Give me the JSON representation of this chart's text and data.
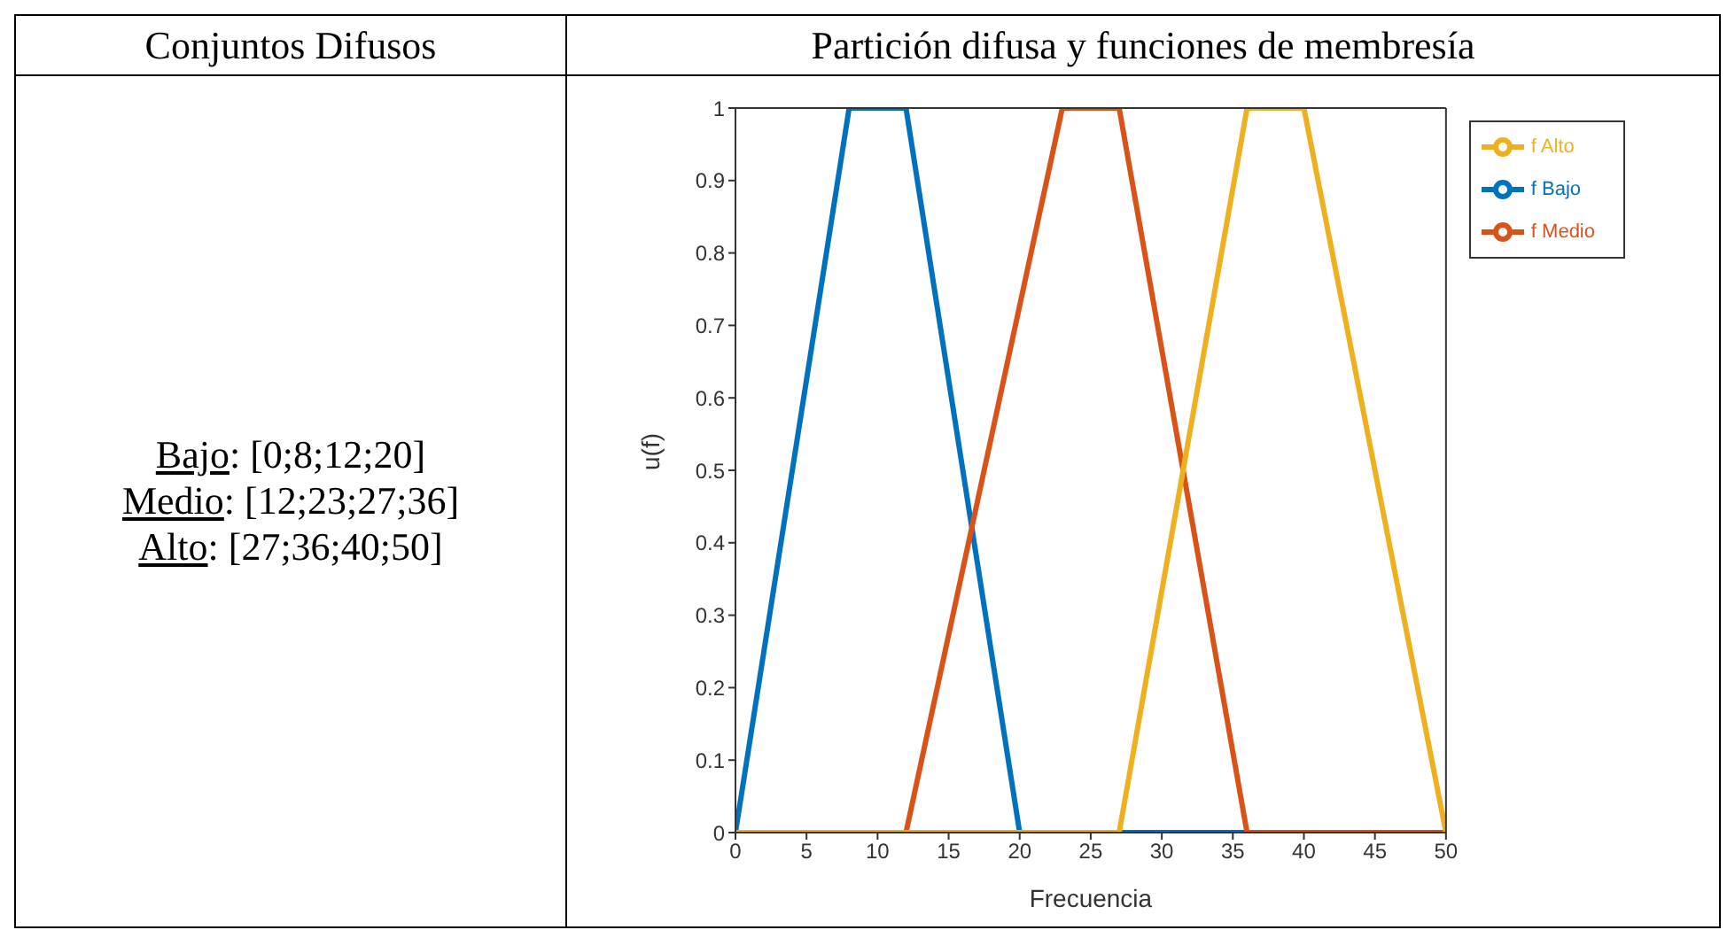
{
  "chart_data": {
    "type": "line",
    "title": "Partición difusa y funciones de membresía",
    "xlabel": "Frecuencia",
    "ylabel": "u(f)",
    "annotations": [
      "Conjuntos Difusos",
      "Bajo: [0;8;12;20]",
      "Medio: [12;23;27;36]",
      "Alto: [27;36;40;50]"
    ],
    "series": [
      {
        "name": "f Bajo",
        "color": "#0072bd",
        "x": [
          0,
          8,
          12,
          20,
          50
        ],
        "values": [
          0,
          1,
          1,
          0,
          0
        ]
      },
      {
        "name": "f Medio",
        "color": "#d95319",
        "x": [
          0,
          12,
          23,
          27,
          36,
          50
        ],
        "values": [
          0,
          0,
          1,
          1,
          0,
          0
        ]
      },
      {
        "name": "f Alto",
        "color": "#edb120",
        "x": [
          0,
          27,
          36,
          40,
          50
        ],
        "values": [
          0,
          0,
          1,
          1,
          0
        ]
      }
    ],
    "xlim": [
      0,
      50
    ],
    "xticks": [
      0,
      5,
      10,
      15,
      20,
      25,
      30,
      35,
      40,
      45,
      50
    ],
    "ylim": [
      0,
      1
    ],
    "yticks": [
      0,
      0.1,
      0.2,
      0.3,
      0.4,
      0.5,
      0.6,
      0.7,
      0.8,
      0.9,
      1
    ],
    "grid": false,
    "legend": "top right",
    "marker": "none",
    "line_style": "solid"
  }
}
